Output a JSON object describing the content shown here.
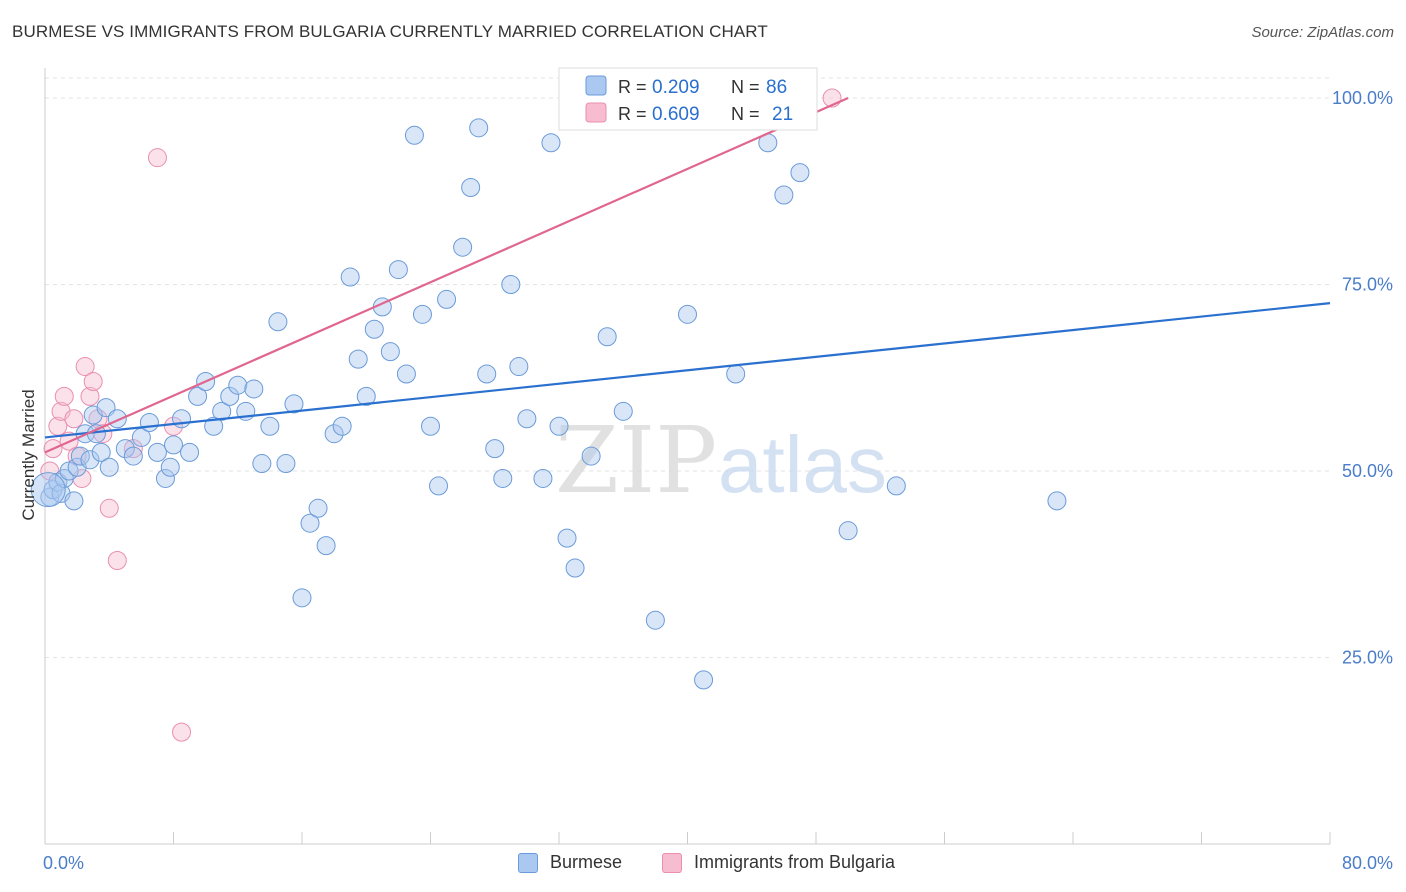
{
  "title": "BURMESE VS IMMIGRANTS FROM BULGARIA CURRENTLY MARRIED CORRELATION CHART",
  "source": "Source: ZipAtlas.com",
  "watermark": {
    "part1": "ZIP",
    "part2": "atlas"
  },
  "colors": {
    "blue_fill": "#aac8f0",
    "blue_stroke": "#6b9bd8",
    "blue_line": "#2a70cf",
    "blue_text": "#2a6fcf",
    "pink_fill": "#f7bcd0",
    "pink_stroke": "#e98fb0",
    "pink_line": "#e0668f",
    "axis_text": "#4a7dc9",
    "grid": "#e3e3e3"
  },
  "chart_data": {
    "type": "scatter",
    "title": "BURMESE VS IMMIGRANTS FROM BULGARIA CURRENTLY MARRIED CORRELATION CHART",
    "xlabel": "",
    "ylabel": "Currently Married",
    "xlim": [
      0,
      80
    ],
    "ylim": [
      0,
      100
    ],
    "x_tick_labels": {
      "min": "0.0%",
      "max": "80.0%"
    },
    "y_ticks": [
      {
        "value": 100,
        "label": "100.0%"
      },
      {
        "value": 75,
        "label": "75.0%"
      },
      {
        "value": 50,
        "label": "50.0%"
      },
      {
        "value": 25,
        "label": "25.0%"
      }
    ],
    "legend": [
      {
        "series": "Burmese",
        "r_label": "R =",
        "r_value": "0.209",
        "n_label": "N =",
        "n_value": "86"
      },
      {
        "series": "Immigrants from Bulgaria",
        "r_label": "R =",
        "r_value": "0.609",
        "n_label": "N =",
        "n_value": "21"
      }
    ],
    "series": [
      {
        "name": "Burmese",
        "color": "#aac8f0",
        "trend": {
          "x": [
            0,
            80
          ],
          "y": [
            54.5,
            72.5
          ]
        },
        "points": [
          [
            0.3,
            46.5
          ],
          [
            0.5,
            47.5
          ],
          [
            0.8,
            48.5
          ],
          [
            1.0,
            47
          ],
          [
            1.2,
            49
          ],
          [
            1.5,
            50
          ],
          [
            1.8,
            46
          ],
          [
            2.0,
            50.5
          ],
          [
            2.2,
            52
          ],
          [
            2.5,
            55
          ],
          [
            2.8,
            51.5
          ],
          [
            3.0,
            57.5
          ],
          [
            3.2,
            55
          ],
          [
            3.5,
            52.5
          ],
          [
            3.8,
            58.5
          ],
          [
            4.0,
            50.5
          ],
          [
            4.5,
            57
          ],
          [
            5.0,
            53
          ],
          [
            5.5,
            52
          ],
          [
            6.0,
            54.5
          ],
          [
            6.5,
            56.5
          ],
          [
            7.0,
            52.5
          ],
          [
            7.5,
            49
          ],
          [
            7.8,
            50.5
          ],
          [
            8.0,
            53.5
          ],
          [
            8.5,
            57
          ],
          [
            9.0,
            52.5
          ],
          [
            9.5,
            60
          ],
          [
            10.0,
            62
          ],
          [
            10.5,
            56
          ],
          [
            11.0,
            58
          ],
          [
            11.5,
            60
          ],
          [
            12.0,
            61.5
          ],
          [
            12.5,
            58
          ],
          [
            13.0,
            61
          ],
          [
            13.5,
            51
          ],
          [
            14.0,
            56
          ],
          [
            14.5,
            70
          ],
          [
            15.0,
            51
          ],
          [
            15.5,
            59
          ],
          [
            16.0,
            33
          ],
          [
            16.5,
            43
          ],
          [
            17.0,
            45
          ],
          [
            17.5,
            40
          ],
          [
            18.0,
            55
          ],
          [
            18.5,
            56
          ],
          [
            19.0,
            76
          ],
          [
            19.5,
            65
          ],
          [
            20.0,
            60
          ],
          [
            20.5,
            69
          ],
          [
            21.0,
            72
          ],
          [
            21.5,
            66
          ],
          [
            22.0,
            77
          ],
          [
            22.5,
            63
          ],
          [
            23.0,
            95
          ],
          [
            23.5,
            71
          ],
          [
            24.0,
            56
          ],
          [
            24.5,
            48
          ],
          [
            25.0,
            73
          ],
          [
            26.0,
            80
          ],
          [
            26.5,
            88
          ],
          [
            27.0,
            96
          ],
          [
            27.5,
            63
          ],
          [
            28.0,
            53
          ],
          [
            28.5,
            49
          ],
          [
            29.0,
            75
          ],
          [
            29.5,
            64
          ],
          [
            30.0,
            57
          ],
          [
            31.0,
            49
          ],
          [
            31.5,
            94
          ],
          [
            32.0,
            56
          ],
          [
            32.5,
            41
          ],
          [
            33.0,
            37
          ],
          [
            34.0,
            52
          ],
          [
            35.0,
            68
          ],
          [
            36.0,
            58
          ],
          [
            38.0,
            30
          ],
          [
            40.0,
            71
          ],
          [
            41.0,
            22
          ],
          [
            43.0,
            63
          ],
          [
            45.0,
            94
          ],
          [
            46.0,
            87
          ],
          [
            47.0,
            90
          ],
          [
            50.0,
            42
          ],
          [
            53.0,
            48
          ],
          [
            63.0,
            46
          ]
        ]
      },
      {
        "name": "Immigrants from Bulgaria",
        "color": "#f7bcd0",
        "trend": {
          "x": [
            0,
            50
          ],
          "y": [
            52.5,
            100
          ]
        },
        "points": [
          [
            0.3,
            50
          ],
          [
            0.5,
            53
          ],
          [
            0.8,
            56
          ],
          [
            1.0,
            58
          ],
          [
            1.2,
            60
          ],
          [
            1.5,
            54
          ],
          [
            1.8,
            57
          ],
          [
            2.0,
            52
          ],
          [
            2.3,
            49
          ],
          [
            2.5,
            64
          ],
          [
            2.8,
            60
          ],
          [
            3.0,
            62
          ],
          [
            3.3,
            57
          ],
          [
            3.6,
            55
          ],
          [
            4.0,
            45
          ],
          [
            4.5,
            38
          ],
          [
            5.5,
            53
          ],
          [
            7.0,
            92
          ],
          [
            8.0,
            56
          ],
          [
            8.5,
            15
          ],
          [
            49.0,
            100
          ]
        ]
      }
    ]
  },
  "ui": {
    "ylabel": "Currently Married"
  }
}
